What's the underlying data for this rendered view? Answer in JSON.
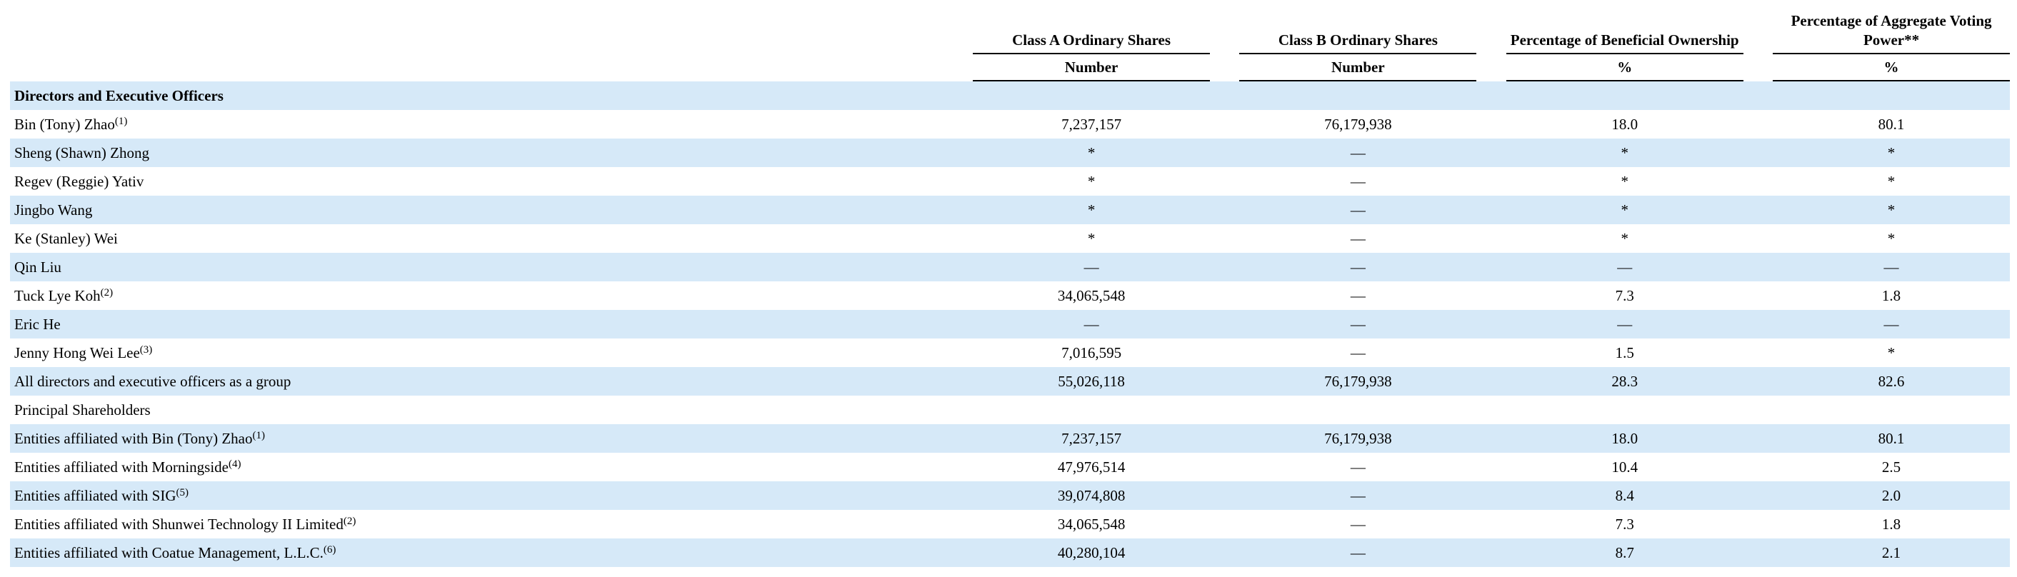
{
  "headers": {
    "class_a": "Class A Ordinary Shares",
    "class_b": "Class B Ordinary Shares",
    "beneficial": "Percentage of Beneficial Ownership",
    "voting": "Percentage of Aggregate Voting Power**",
    "class_a_sub": "Number",
    "class_b_sub": "Number",
    "beneficial_sub": "%",
    "voting_sub": "%"
  },
  "section_title": "Directors and Executive Officers",
  "rows": [
    {
      "name": "Bin (Tony) Zhao",
      "note": "(1)",
      "class_a": "7,237,157",
      "class_b": "76,179,938",
      "beneficial": "18.0",
      "voting": "80.1"
    },
    {
      "name": "Sheng (Shawn) Zhong",
      "note": "",
      "class_a": "*",
      "class_b": "—",
      "beneficial": "*",
      "voting": "*"
    },
    {
      "name": "Regev (Reggie) Yativ",
      "note": "",
      "class_a": "*",
      "class_b": "—",
      "beneficial": "*",
      "voting": "*"
    },
    {
      "name": "Jingbo Wang",
      "note": "",
      "class_a": "*",
      "class_b": "—",
      "beneficial": "*",
      "voting": "*"
    },
    {
      "name": "Ke (Stanley) Wei",
      "note": "",
      "class_a": "*",
      "class_b": "—",
      "beneficial": "*",
      "voting": "*"
    },
    {
      "name": "Qin Liu",
      "note": "",
      "class_a": "—",
      "class_b": "—",
      "beneficial": "—",
      "voting": "—"
    },
    {
      "name": "Tuck Lye Koh",
      "note": "(2)",
      "class_a": "34,065,548",
      "class_b": "—",
      "beneficial": "7.3",
      "voting": "1.8"
    },
    {
      "name": "Eric He",
      "note": "",
      "class_a": "—",
      "class_b": "—",
      "beneficial": "—",
      "voting": "—"
    },
    {
      "name": "Jenny Hong Wei Lee",
      "note": "(3)",
      "class_a": "7,016,595",
      "class_b": "—",
      "beneficial": "1.5",
      "voting": "*"
    },
    {
      "name": "All directors and executive officers as a group",
      "note": "",
      "class_a": "55,026,118",
      "class_b": "76,179,938",
      "beneficial": "28.3",
      "voting": "82.6"
    },
    {
      "name": "Principal Shareholders",
      "note": "",
      "class_a": "",
      "class_b": "",
      "beneficial": "",
      "voting": ""
    },
    {
      "name": "Entities affiliated with Bin (Tony) Zhao",
      "note": "(1)",
      "class_a": "7,237,157",
      "class_b": "76,179,938",
      "beneficial": "18.0",
      "voting": "80.1"
    },
    {
      "name": "Entities affiliated with Morningside",
      "note": "(4)",
      "class_a": "47,976,514",
      "class_b": "—",
      "beneficial": "10.4",
      "voting": "2.5"
    },
    {
      "name": "Entities affiliated with SIG",
      "note": "(5)",
      "class_a": "39,074,808",
      "class_b": "—",
      "beneficial": "8.4",
      "voting": "2.0"
    },
    {
      "name": "Entities affiliated with Shunwei Technology II Limited",
      "note": "(2)",
      "class_a": "34,065,548",
      "class_b": "—",
      "beneficial": "7.3",
      "voting": "1.8"
    },
    {
      "name": "Entities affiliated with Coatue Management, L.L.C.",
      "note": "(6)",
      "class_a": "40,280,104",
      "class_b": "—",
      "beneficial": "8.7",
      "voting": "2.1"
    }
  ]
}
